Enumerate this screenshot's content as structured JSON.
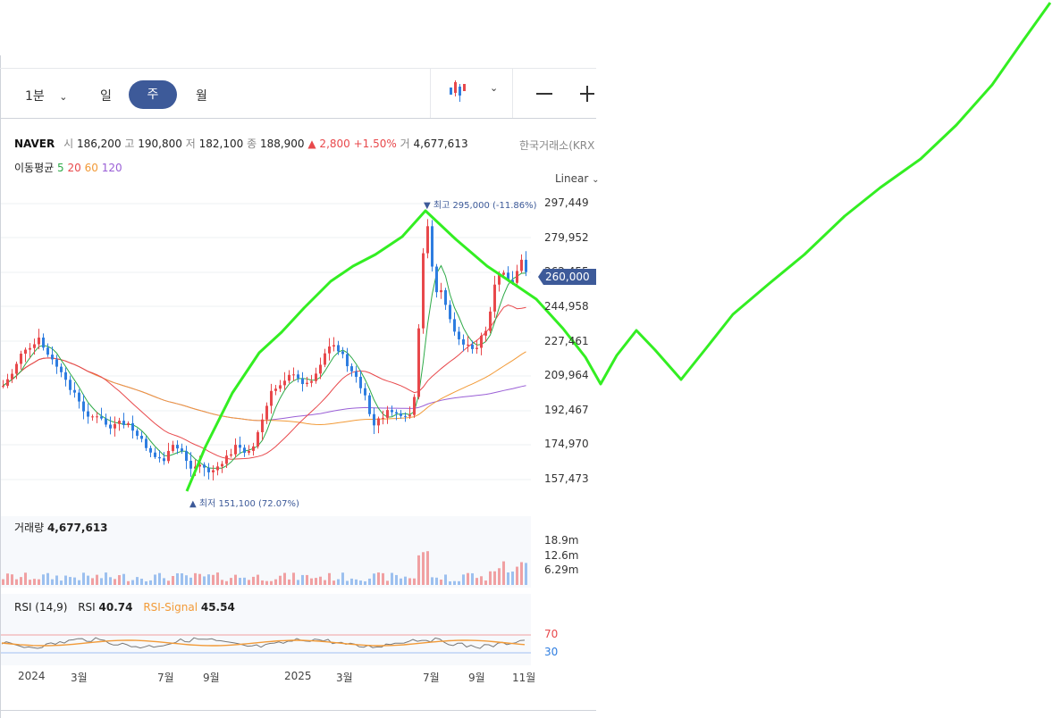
{
  "toolbar": {
    "interval_label": "1분",
    "tabs": [
      {
        "label": "일",
        "active": false
      },
      {
        "label": "주",
        "active": true
      },
      {
        "label": "월",
        "active": false
      }
    ],
    "chart_type_icon": "candlestick-icon",
    "zoom_out_icon": "minus-icon",
    "zoom_in_icon": "plus-icon"
  },
  "quote": {
    "name": "NAVER",
    "open_label": "시",
    "open": "186,200",
    "high_label": "고",
    "high": "190,800",
    "low_label": "저",
    "low": "182,100",
    "close_label": "종",
    "close": "188,900",
    "change": "▲ 2,800",
    "change_pct": "+1.50%",
    "volume_label": "거",
    "volume": "4,677,613",
    "exchange": "한국거래소(KRX"
  },
  "ma_legend": {
    "title": "이동평균",
    "items": [
      {
        "label": "5",
        "color": "#2eaa48"
      },
      {
        "label": "20",
        "color": "#e8484b"
      },
      {
        "label": "60",
        "color": "#f29a37"
      },
      {
        "label": "120",
        "color": "#9a5fd6"
      }
    ]
  },
  "scale": {
    "label": "Linear"
  },
  "price_axis": {
    "ticks": [
      "297,449",
      "279,952",
      "244,958",
      "227,461",
      "209,964",
      "192,467",
      "174,970",
      "157,473"
    ],
    "current_price": "260,000",
    "hidden_tick_fragment": "262,455"
  },
  "annotations": {
    "high": "▼ 최고 295,000 (-11.86%)",
    "low": "▲ 최저 151,100 (72.07%)"
  },
  "volume_panel": {
    "label": "거래량",
    "value": "4,677,613",
    "ticks": [
      "18.9m",
      "12.6m",
      "6.29m"
    ]
  },
  "rsi_panel": {
    "label": "RSI (14,9)",
    "rsi_label": "RSI",
    "rsi_value": "40.74",
    "signal_label": "RSI-Signal",
    "signal_value": "45.54",
    "levels": [
      "70",
      "30"
    ]
  },
  "x_axis": {
    "labels": [
      "2024",
      "3월",
      "7월",
      "9월",
      "2025",
      "3월",
      "7월",
      "9월",
      "11월"
    ]
  },
  "colors": {
    "up": "#e8484b",
    "down": "#2e7de0",
    "active_tab": "#3d5a99",
    "price_tag": "#3d5a99",
    "overlay_line": "#33ee22",
    "ma5": "#2eaa48",
    "ma20": "#e8484b",
    "ma60": "#f29a37",
    "ma120": "#9a5fd6"
  }
}
